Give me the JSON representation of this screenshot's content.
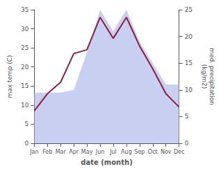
{
  "chart_data": {
    "type": "line",
    "categories": [
      "Jan",
      "Feb",
      "Mar",
      "Apr",
      "May",
      "Jun",
      "Jul",
      "Aug",
      "Sep",
      "Oct",
      "Nov",
      "Dec"
    ],
    "xlabel": "date (month)",
    "ylabel": "max temp (C)",
    "y2label": "med. precipitation\n(kg/m2)",
    "series": [
      {
        "type": "area",
        "axis": "y2",
        "color": "#b0baea",
        "values": [
          9.5,
          9.5,
          9.5,
          10.0,
          17.0,
          25.0,
          21.0,
          25.0,
          19.0,
          15.0,
          11.0,
          11.0
        ]
      },
      {
        "type": "line",
        "color": "#8b2040",
        "values": [
          8.5,
          13.0,
          16.0,
          23.5,
          24.5,
          33.0,
          27.5,
          33.0,
          25.5,
          19.5,
          13.0,
          9.5
        ]
      }
    ],
    "ylim": [
      0,
      35
    ],
    "yticks": [
      0,
      5,
      10,
      15,
      20,
      25,
      30,
      35
    ],
    "y2lim": [
      0,
      25
    ],
    "y2ticks": [
      0,
      5,
      10,
      15,
      20,
      25
    ],
    "grid": false
  }
}
